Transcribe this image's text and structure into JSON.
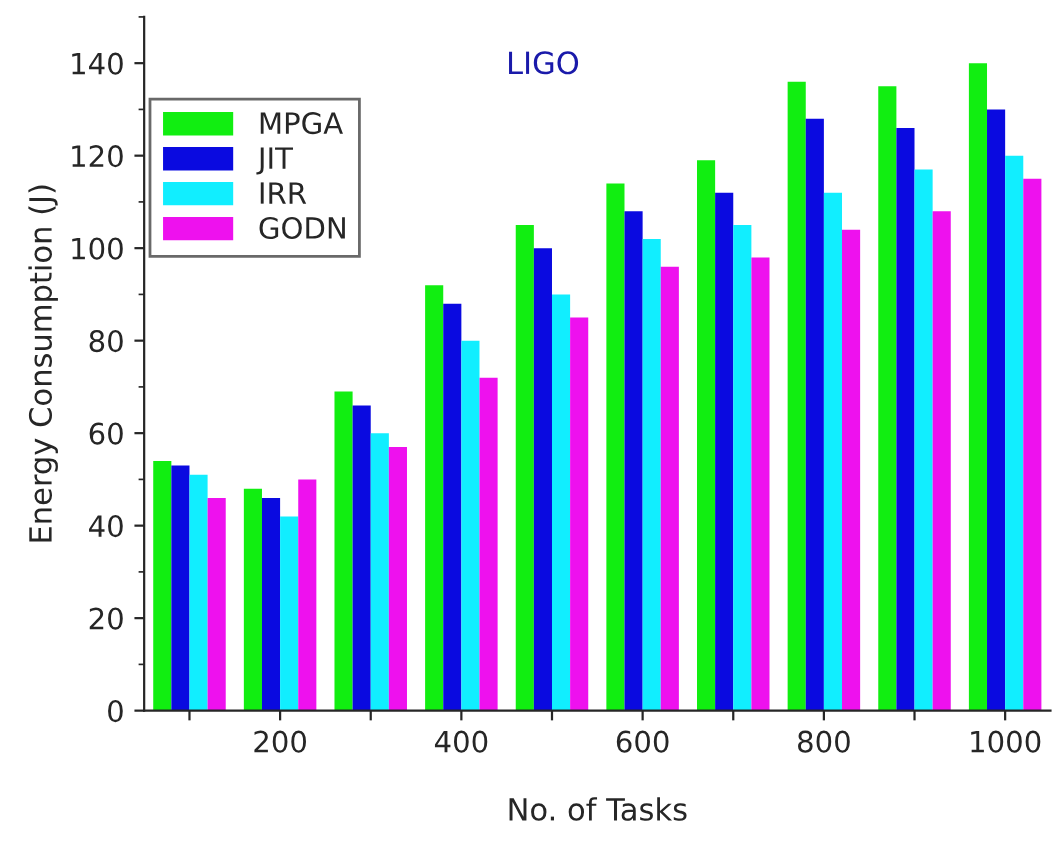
{
  "chart_data": {
    "type": "bar",
    "title": "LIGO",
    "xlabel": "No. of Tasks",
    "ylabel": "Energy Consumption (J)",
    "x": [
      100,
      200,
      300,
      400,
      500,
      600,
      700,
      800,
      900,
      1000
    ],
    "series": [
      {
        "name": "MPGA",
        "color": "#11ee11",
        "values": [
          54,
          48,
          69,
          92,
          105,
          114,
          119,
          136,
          135,
          140
        ]
      },
      {
        "name": "JIT",
        "color": "#0a0ae0",
        "values": [
          53,
          46,
          66,
          88,
          100,
          108,
          112,
          128,
          126,
          130
        ]
      },
      {
        "name": "IRR",
        "color": "#11eeff",
        "values": [
          51,
          42,
          60,
          80,
          90,
          102,
          105,
          112,
          117,
          120
        ]
      },
      {
        "name": "GODN",
        "color": "#ee11ee",
        "values": [
          46,
          50,
          57,
          72,
          85,
          96,
          98,
          104,
          108,
          115
        ]
      }
    ],
    "xlim": [
      50,
      1050
    ],
    "xticks": [
      {
        "value": 100,
        "label": null
      },
      200,
      {
        "value": 300,
        "label": null
      },
      400,
      {
        "value": 500,
        "label": null
      },
      600,
      {
        "value": 700,
        "label": null
      },
      800,
      {
        "value": 900,
        "label": null
      },
      1000
    ],
    "ylim": [
      0,
      150
    ],
    "yticks": [
      0,
      20,
      40,
      60,
      80,
      100,
      120,
      140
    ],
    "grid": false,
    "legend": "top left"
  }
}
